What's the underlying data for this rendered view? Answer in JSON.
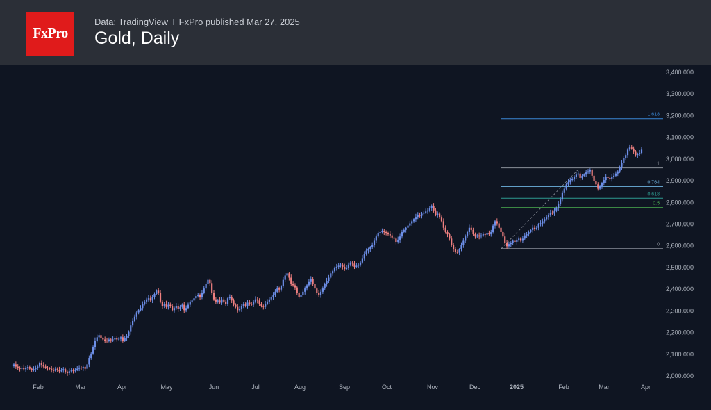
{
  "header": {
    "logo_text": "FxPro",
    "data_source": "Data: TradingView",
    "separator": "I",
    "published": "FxPro published Mar 27, 2025",
    "title": "Gold, Daily"
  },
  "colors": {
    "background": "#0f1522",
    "header_bg": "#2b2f37",
    "logo_red": "#e01b1b",
    "bull": "#6d8fe8",
    "bear": "#f08080",
    "axis_text": "#aeb4be"
  },
  "chart_data": {
    "type": "candlestick",
    "title": "Gold, Daily",
    "ylim": [
      2000,
      3400
    ],
    "yticks": [
      "2,000.000",
      "2,100.000",
      "2,200.000",
      "2,300.000",
      "2,400.000",
      "2,500.000",
      "2,600.000",
      "2,700.000",
      "2,800.000",
      "2,900.000",
      "3,000.000",
      "3,100.000",
      "3,200.000",
      "3,300.000",
      "3,400.000"
    ],
    "xtick_labels": [
      "Feb",
      "Mar",
      "Apr",
      "May",
      "Jun",
      "Jul",
      "Aug",
      "Sep",
      "Oct",
      "Nov",
      "Dec",
      "2025",
      "Feb",
      "Mar",
      "Apr"
    ],
    "closes": [
      2050,
      2040,
      2032,
      2030,
      2035,
      2028,
      2033,
      2038,
      2030,
      2025,
      2028,
      2035,
      2040,
      2055,
      2048,
      2040,
      2035,
      2032,
      2030,
      2025,
      2020,
      2030,
      2025,
      2018,
      2022,
      2028,
      2015,
      2010,
      2018,
      2022,
      2020,
      2025,
      2030,
      2035,
      2032,
      2038,
      2030,
      2050,
      2080,
      2100,
      2130,
      2160,
      2175,
      2185,
      2170,
      2165,
      2160,
      2158,
      2165,
      2162,
      2165,
      2170,
      2165,
      2168,
      2175,
      2160,
      2170,
      2180,
      2200,
      2230,
      2250,
      2270,
      2290,
      2300,
      2310,
      2330,
      2340,
      2350,
      2355,
      2345,
      2360,
      2375,
      2390,
      2380,
      2340,
      2320,
      2330,
      2315,
      2325,
      2320,
      2300,
      2310,
      2320,
      2305,
      2315,
      2325,
      2300,
      2310,
      2325,
      2340,
      2345,
      2355,
      2365,
      2370,
      2360,
      2380,
      2400,
      2420,
      2440,
      2425,
      2380,
      2350,
      2340,
      2345,
      2335,
      2350,
      2340,
      2330,
      2355,
      2360,
      2345,
      2325,
      2315,
      2300,
      2305,
      2320,
      2330,
      2320,
      2335,
      2330,
      2325,
      2340,
      2350,
      2345,
      2330,
      2320,
      2315,
      2330,
      2340,
      2350,
      2360,
      2370,
      2385,
      2400,
      2395,
      2410,
      2440,
      2460,
      2470,
      2450,
      2420,
      2415,
      2405,
      2380,
      2360,
      2370,
      2385,
      2400,
      2415,
      2430,
      2445,
      2420,
      2400,
      2380,
      2370,
      2385,
      2400,
      2420,
      2435,
      2450,
      2470,
      2480,
      2495,
      2500,
      2505,
      2510,
      2500,
      2490,
      2495,
      2510,
      2520,
      2515,
      2500,
      2505,
      2510,
      2520,
      2540,
      2560,
      2575,
      2580,
      2590,
      2600,
      2620,
      2640,
      2655,
      2660,
      2665,
      2660,
      2655,
      2650,
      2645,
      2635,
      2630,
      2615,
      2625,
      2640,
      2660,
      2670,
      2680,
      2690,
      2700,
      2710,
      2720,
      2730,
      2740,
      2735,
      2745,
      2750,
      2755,
      2760,
      2770,
      2780,
      2760,
      2740,
      2745,
      2730,
      2710,
      2680,
      2660,
      2650,
      2630,
      2600,
      2580,
      2570,
      2565,
      2580,
      2600,
      2620,
      2640,
      2660,
      2680,
      2670,
      2650,
      2640,
      2645,
      2640,
      2645,
      2650,
      2648,
      2655,
      2650,
      2660,
      2690,
      2710,
      2700,
      2680,
      2660,
      2640,
      2610,
      2595,
      2605,
      2610,
      2620,
      2615,
      2625,
      2630,
      2620,
      2630,
      2645,
      2650,
      2660,
      2670,
      2680,
      2675,
      2680,
      2695,
      2700,
      2710,
      2720,
      2730,
      2740,
      2750,
      2745,
      2760,
      2770,
      2790,
      2810,
      2840,
      2860,
      2880,
      2890,
      2900,
      2905,
      2915,
      2925,
      2930,
      2910,
      2920,
      2925,
      2935,
      2940,
      2945,
      2920,
      2895,
      2880,
      2860,
      2870,
      2885,
      2900,
      2915,
      2910,
      2905,
      2915,
      2920,
      2930,
      2940,
      2960,
      2980,
      3000,
      3015,
      3040,
      3050,
      3045,
      3030,
      3015,
      3020,
      3025,
      3040
    ]
  },
  "fib_levels": [
    {
      "label": "1.618",
      "price": 3183,
      "color": "#3a86d4"
    },
    {
      "label": "1",
      "price": 2956,
      "color": "#8a8f99"
    },
    {
      "label": "0.764",
      "price": 2870,
      "color": "#6fb3e0"
    },
    {
      "label": "0.618",
      "price": 2816,
      "color": "#2e9b91"
    },
    {
      "label": "0.5",
      "price": 2773,
      "color": "#4caf50"
    },
    {
      "label": "0",
      "price": 2584,
      "color": "#8a8f99"
    }
  ]
}
